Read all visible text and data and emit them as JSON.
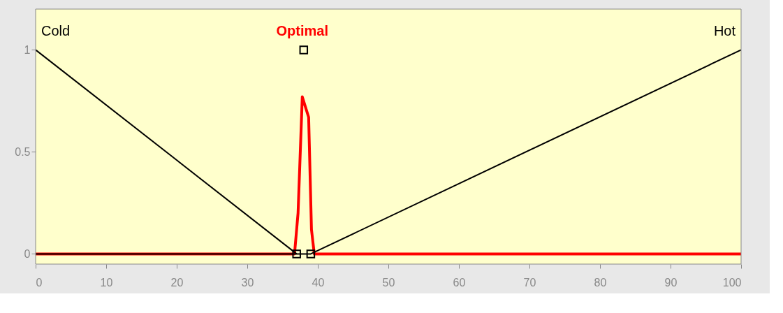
{
  "chart_data": {
    "type": "line",
    "xlim": [
      0,
      100
    ],
    "ylim": [
      -0.05,
      1.2
    ],
    "xticks": [
      0,
      10,
      20,
      30,
      40,
      50,
      60,
      70,
      80,
      90,
      100
    ],
    "yticks": [
      0,
      0.5,
      1
    ],
    "grid": false,
    "legend": false,
    "marker": "none",
    "line_style": "solid",
    "series": [
      {
        "name": "Optimal",
        "color": "#ff0000",
        "x": [
          0,
          36.7,
          37.2,
          37.8,
          38.7,
          39.1,
          39.5,
          100
        ],
        "values": [
          0,
          0,
          0.2,
          0.77,
          0.67,
          0.12,
          0,
          0
        ]
      },
      {
        "name": "Hot",
        "color": "#000000",
        "x": [
          0,
          39,
          100
        ],
        "values": [
          0,
          0,
          1
        ]
      },
      {
        "name": "Cold",
        "color": "#000000",
        "x": [
          0,
          37
        ],
        "values": [
          1,
          0
        ]
      },
      {
        "type": "scatter",
        "marker": "square",
        "color": "#000000",
        "x": [
          37,
          39,
          38
        ],
        "values": [
          0,
          0,
          1
        ]
      }
    ]
  }
}
